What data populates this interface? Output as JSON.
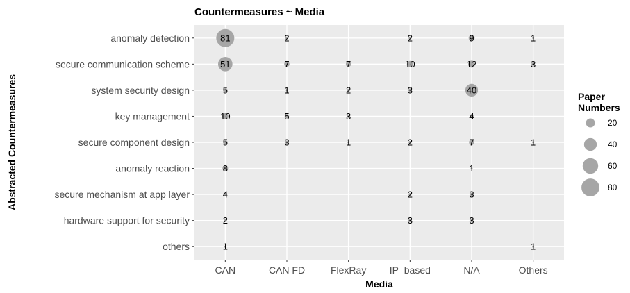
{
  "chart_data": {
    "type": "scatter",
    "title": "Countermeasures ~ Media",
    "xlabel": "Media",
    "ylabel": "Abstracted Countermeasures",
    "x_categories": [
      "CAN",
      "CAN FD",
      "FlexRay",
      "IP–based",
      "N/A",
      "Others"
    ],
    "y_categories": [
      "anomaly detection",
      "secure communication scheme",
      "system security design",
      "key management",
      "secure component design",
      "anomaly reaction",
      "secure mechanism at app layer",
      "hardware support for security",
      "others"
    ],
    "points": [
      {
        "x": "CAN",
        "y": "anomaly detection",
        "value": 81
      },
      {
        "x": "CAN FD",
        "y": "anomaly detection",
        "value": 2
      },
      {
        "x": "IP–based",
        "y": "anomaly detection",
        "value": 2
      },
      {
        "x": "N/A",
        "y": "anomaly detection",
        "value": 9
      },
      {
        "x": "Others",
        "y": "anomaly detection",
        "value": 1
      },
      {
        "x": "CAN",
        "y": "secure communication scheme",
        "value": 51
      },
      {
        "x": "CAN FD",
        "y": "secure communication scheme",
        "value": 7
      },
      {
        "x": "FlexRay",
        "y": "secure communication scheme",
        "value": 7
      },
      {
        "x": "IP–based",
        "y": "secure communication scheme",
        "value": 10
      },
      {
        "x": "N/A",
        "y": "secure communication scheme",
        "value": 12
      },
      {
        "x": "Others",
        "y": "secure communication scheme",
        "value": 3
      },
      {
        "x": "CAN",
        "y": "system security design",
        "value": 5
      },
      {
        "x": "CAN FD",
        "y": "system security design",
        "value": 1
      },
      {
        "x": "FlexRay",
        "y": "system security design",
        "value": 2
      },
      {
        "x": "IP–based",
        "y": "system security design",
        "value": 3
      },
      {
        "x": "N/A",
        "y": "system security design",
        "value": 40
      },
      {
        "x": "CAN",
        "y": "key management",
        "value": 10
      },
      {
        "x": "CAN FD",
        "y": "key management",
        "value": 5
      },
      {
        "x": "FlexRay",
        "y": "key management",
        "value": 3
      },
      {
        "x": "N/A",
        "y": "key management",
        "value": 4
      },
      {
        "x": "CAN",
        "y": "secure component design",
        "value": 5
      },
      {
        "x": "CAN FD",
        "y": "secure component design",
        "value": 3
      },
      {
        "x": "FlexRay",
        "y": "secure component design",
        "value": 1
      },
      {
        "x": "IP–based",
        "y": "secure component design",
        "value": 2
      },
      {
        "x": "N/A",
        "y": "secure component design",
        "value": 7
      },
      {
        "x": "Others",
        "y": "secure component design",
        "value": 1
      },
      {
        "x": "CAN",
        "y": "anomaly reaction",
        "value": 8
      },
      {
        "x": "N/A",
        "y": "anomaly reaction",
        "value": 1
      },
      {
        "x": "CAN",
        "y": "secure mechanism at app layer",
        "value": 4
      },
      {
        "x": "IP–based",
        "y": "secure mechanism at app layer",
        "value": 2
      },
      {
        "x": "N/A",
        "y": "secure mechanism at app layer",
        "value": 3
      },
      {
        "x": "CAN",
        "y": "hardware support for security",
        "value": 2
      },
      {
        "x": "IP–based",
        "y": "hardware support for security",
        "value": 3
      },
      {
        "x": "N/A",
        "y": "hardware support for security",
        "value": 3
      },
      {
        "x": "CAN",
        "y": "others",
        "value": 1
      },
      {
        "x": "Others",
        "y": "others",
        "value": 1
      }
    ],
    "legend": {
      "title_line1": "Paper",
      "title_line2": "Numbers",
      "values": [
        20,
        40,
        60,
        80
      ],
      "position": "right"
    },
    "grid": true,
    "colors": {
      "panel_background": "#ebebeb",
      "grid_line": "#ffffff",
      "point_fill": "#a6a6a6"
    }
  }
}
